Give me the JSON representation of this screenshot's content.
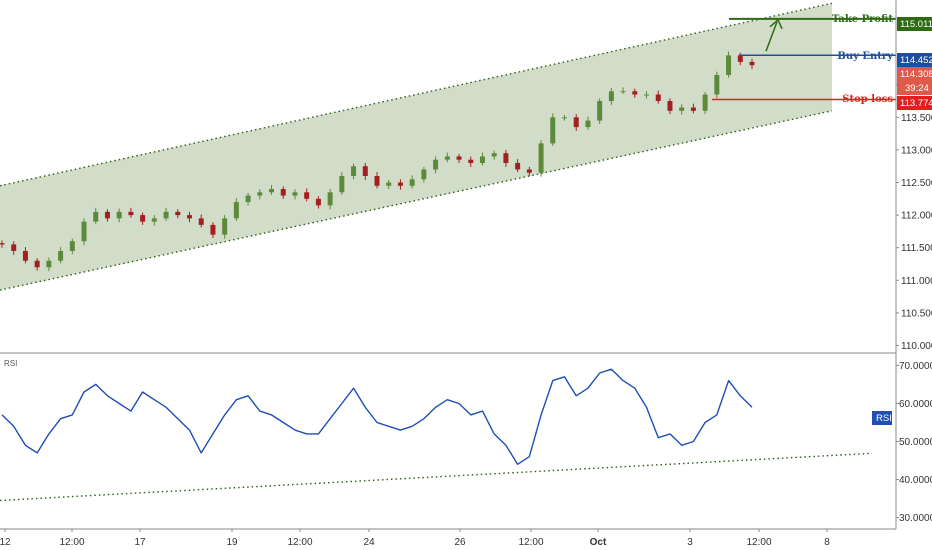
{
  "chart_data": [
    {
      "type": "candlestick",
      "pane": "price",
      "ylim": [
        109.9,
        115.3
      ],
      "y_ticks": [
        "110.000",
        "110.500",
        "111.000",
        "111.500",
        "112.000",
        "112.500",
        "113.000",
        "113.500",
        "114.000"
      ],
      "x_tick_labels": [
        "12",
        "12:00",
        "17",
        "19",
        "12:00",
        "24",
        "26",
        "12:00",
        "Oct",
        "3",
        "12:00",
        "8"
      ],
      "close_series": [
        111.55,
        111.45,
        111.3,
        111.2,
        111.3,
        111.45,
        111.6,
        111.9,
        112.05,
        111.95,
        112.05,
        112.0,
        111.9,
        111.95,
        112.05,
        112.0,
        111.95,
        111.85,
        111.7,
        111.95,
        112.2,
        112.3,
        112.35,
        112.4,
        112.3,
        112.35,
        112.25,
        112.15,
        112.35,
        112.6,
        112.75,
        112.6,
        112.45,
        112.5,
        112.45,
        112.55,
        112.7,
        112.85,
        112.9,
        112.85,
        112.8,
        112.9,
        112.95,
        112.8,
        112.7,
        112.65,
        113.1,
        113.5,
        113.5,
        113.35,
        113.45,
        113.75,
        113.9,
        113.9,
        113.85,
        113.85,
        113.75,
        113.6,
        113.65,
        113.6,
        113.85,
        114.15,
        114.45,
        114.35,
        114.3
      ],
      "levels": [
        {
          "label": "Take Profit",
          "value": "115.011",
          "color": "#2e6b12"
        },
        {
          "label": "Buy Entry",
          "value": "114.452",
          "color": "#1f4e9c"
        },
        {
          "label": "Stop loss",
          "value": "113.774",
          "color": "#e01f1f"
        }
      ],
      "current_price": "114.308",
      "countdown": "39:24",
      "channel": {
        "color": "#c9d7c0",
        "line_color": "#2e5c1a"
      }
    },
    {
      "type": "line",
      "pane": "indicator",
      "name": "RSI",
      "ylim": [
        27,
        73
      ],
      "y_ticks": [
        "30.0000",
        "40.0000",
        "50.0000",
        "60.0000",
        "70.0000"
      ],
      "values": [
        57,
        54,
        49,
        47,
        52,
        56,
        57,
        63,
        65,
        62,
        60,
        58,
        63,
        61,
        59,
        56,
        53,
        47,
        52,
        57,
        61,
        62,
        58,
        57,
        55,
        53,
        52,
        52,
        56,
        60,
        64,
        59,
        55,
        54,
        53,
        54,
        56,
        59,
        61,
        60,
        57,
        58,
        52,
        49,
        44,
        46,
        57,
        66,
        67,
        62,
        64,
        68,
        69,
        66,
        64,
        59,
        51,
        52,
        49,
        50,
        55,
        57,
        66,
        62,
        59
      ],
      "trendline_color": "#2e5c1a",
      "line_color": "#1f4eb4"
    }
  ],
  "labels": {
    "take_profit": "Take Profit",
    "buy_entry": "Buy Entry",
    "stop_loss": "Stop loss",
    "rsi_pane": "RSI",
    "rsi_badge": "RSI",
    "tp_value": "115.011",
    "be_value": "114.452",
    "sl_value": "113.774",
    "current_value": "114.308",
    "countdown_value": "39:24"
  },
  "colors": {
    "bull": "#5d8a3a",
    "bear": "#a32020",
    "badge_current": "#e05a4a",
    "axis": "#555555"
  }
}
